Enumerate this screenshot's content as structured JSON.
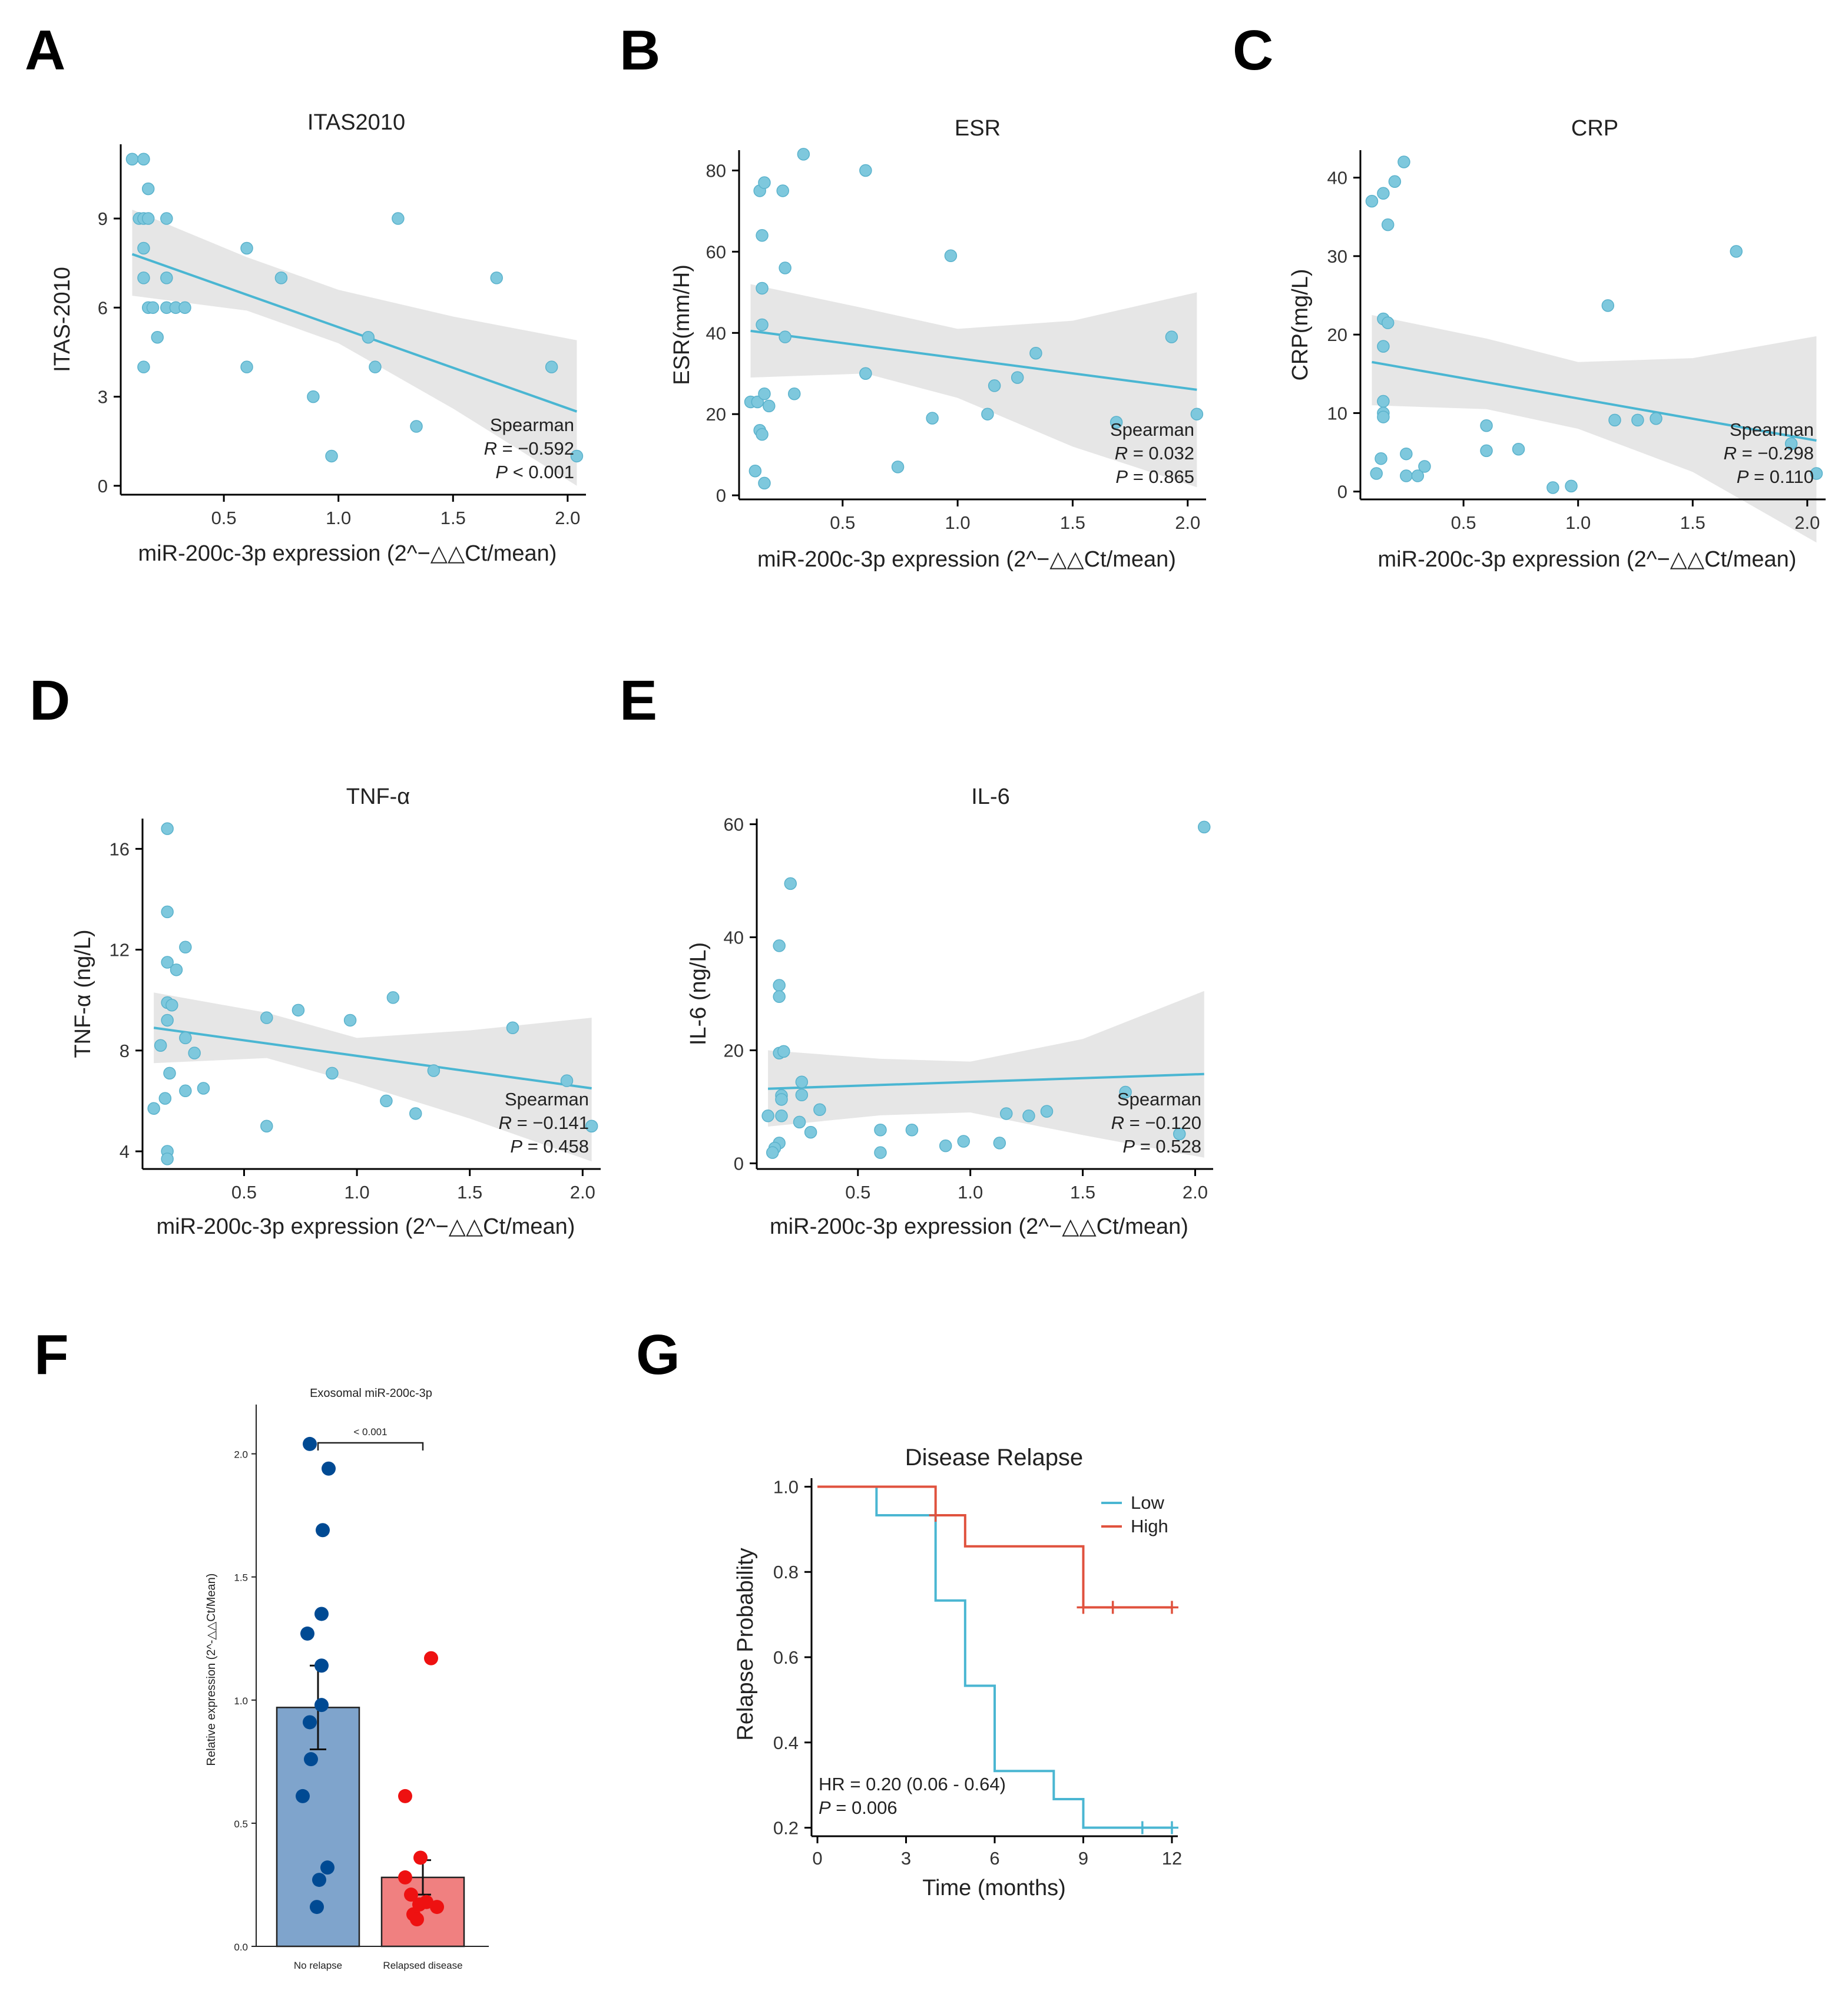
{
  "panels": {
    "A": "A",
    "B": "B",
    "C": "C",
    "D": "D",
    "E": "E",
    "F": "F",
    "G": "G"
  },
  "colors": {
    "point": "#7ec8dd",
    "point_stroke": "#5ab2cc",
    "line": "#4ab6d2",
    "band": "#e2e2e2",
    "bar_no_relapse": "#7fa4cc",
    "bar_relapsed": "#f08080",
    "dot_no_relapse": "#004a93",
    "dot_relapsed": "#ee1111",
    "km_low": "#4ab6d2",
    "km_high": "#e0523e"
  },
  "chart_data": [
    {
      "id": "A",
      "type": "scatter",
      "title": "ITAS2010",
      "xlabel": "miR-200c-3p expression (2^−△△Ct/mean)",
      "ylabel": "ITAS-2010",
      "xlim": [
        0.05,
        2.08
      ],
      "ylim": [
        -0.3,
        11.5
      ],
      "xticks": [
        0.5,
        1.0,
        1.5,
        2.0
      ],
      "xtick_labels": [
        "0.5",
        "1.0",
        "1.5",
        "2.0"
      ],
      "yticks": [
        0,
        3,
        6,
        9
      ],
      "ytick_labels": [
        "0",
        "3",
        "6",
        "9"
      ],
      "points": [
        [
          0.1,
          11
        ],
        [
          0.15,
          11
        ],
        [
          0.17,
          10
        ],
        [
          0.13,
          9
        ],
        [
          0.15,
          9
        ],
        [
          0.17,
          9
        ],
        [
          0.25,
          9
        ],
        [
          0.15,
          8
        ],
        [
          0.15,
          7
        ],
        [
          0.25,
          7
        ],
        [
          0.17,
          6
        ],
        [
          0.19,
          6
        ],
        [
          0.25,
          6
        ],
        [
          0.29,
          6
        ],
        [
          0.33,
          6
        ],
        [
          0.21,
          5
        ],
        [
          0.15,
          4
        ],
        [
          0.6,
          8
        ],
        [
          0.75,
          7
        ],
        [
          0.6,
          4
        ],
        [
          0.89,
          3
        ],
        [
          0.97,
          1
        ],
        [
          1.13,
          5
        ],
        [
          1.16,
          4
        ],
        [
          1.26,
          9
        ],
        [
          1.34,
          2
        ],
        [
          1.69,
          7
        ],
        [
          1.93,
          4
        ],
        [
          2.04,
          1
        ]
      ],
      "fit": {
        "x0": 0.1,
        "y0": 7.8,
        "x1": 2.04,
        "y1": 2.5
      },
      "band_upper": [
        [
          0.1,
          9.3
        ],
        [
          0.6,
          7.7
        ],
        [
          1.0,
          6.6
        ],
        [
          1.5,
          5.7
        ],
        [
          2.04,
          4.9
        ]
      ],
      "band_lower": [
        [
          0.1,
          6.4
        ],
        [
          0.6,
          5.9
        ],
        [
          1.0,
          4.8
        ],
        [
          1.5,
          2.6
        ],
        [
          2.04,
          0.0
        ]
      ],
      "stat": {
        "method": "Spearman",
        "r_label": "R",
        "r_value": " = −0.592",
        "p_label": "P",
        "p_value": " < 0.001"
      }
    },
    {
      "id": "B",
      "type": "scatter",
      "title": "ESR",
      "xlabel": "miR-200c-3p expression (2^−△△Ct/mean)",
      "ylabel": "ESR(mm/H)",
      "xlim": [
        0.05,
        2.08
      ],
      "ylim": [
        -1,
        85
      ],
      "xticks": [
        0.5,
        1.0,
        1.5,
        2.0
      ],
      "xtick_labels": [
        "0.5",
        "1.0",
        "1.5",
        "2.0"
      ],
      "yticks": [
        0,
        20,
        40,
        60,
        80
      ],
      "ytick_labels": [
        "0",
        "20",
        "40",
        "60",
        "80"
      ],
      "points": [
        [
          0.1,
          23
        ],
        [
          0.12,
          6
        ],
        [
          0.14,
          16
        ],
        [
          0.15,
          15
        ],
        [
          0.16,
          3
        ],
        [
          0.13,
          23
        ],
        [
          0.16,
          25
        ],
        [
          0.18,
          22
        ],
        [
          0.15,
          42
        ],
        [
          0.15,
          51
        ],
        [
          0.15,
          64
        ],
        [
          0.14,
          75
        ],
        [
          0.16,
          77
        ],
        [
          0.24,
          75
        ],
        [
          0.25,
          56
        ],
        [
          0.25,
          39
        ],
        [
          0.29,
          25
        ],
        [
          0.33,
          84
        ],
        [
          0.6,
          80
        ],
        [
          0.6,
          30
        ],
        [
          0.74,
          7
        ],
        [
          0.89,
          19
        ],
        [
          0.97,
          59
        ],
        [
          1.13,
          20
        ],
        [
          1.16,
          27
        ],
        [
          1.26,
          29
        ],
        [
          1.34,
          35
        ],
        [
          1.69,
          18
        ],
        [
          1.93,
          39
        ],
        [
          2.04,
          20
        ]
      ],
      "fit": {
        "x0": 0.1,
        "y0": 40.5,
        "x1": 2.04,
        "y1": 26
      },
      "band_upper": [
        [
          0.1,
          52
        ],
        [
          0.6,
          46
        ],
        [
          1.0,
          41
        ],
        [
          1.5,
          43
        ],
        [
          2.04,
          50
        ]
      ],
      "band_lower": [
        [
          0.1,
          29
        ],
        [
          0.6,
          30
        ],
        [
          1.0,
          24
        ],
        [
          1.5,
          12
        ],
        [
          2.04,
          2
        ]
      ],
      "stat": {
        "method": "Spearman",
        "r_label": "R",
        "r_value": " = 0.032",
        "p_label": "P",
        "p_value": " = 0.865"
      }
    },
    {
      "id": "C",
      "type": "scatter",
      "title": "CRP",
      "xlabel": "miR-200c-3p expression (2^−△△Ct/mean)",
      "ylabel": "CRP(mg/L)",
      "xlim": [
        0.05,
        2.08
      ],
      "ylim": [
        -1,
        43.5
      ],
      "xticks": [
        0.5,
        1.0,
        1.5,
        2.0
      ],
      "xtick_labels": [
        "0.5",
        "1.0",
        "1.5",
        "2.0"
      ],
      "yticks": [
        0,
        10,
        20,
        30,
        40
      ],
      "ytick_labels": [
        "0",
        "10",
        "20",
        "30",
        "40"
      ],
      "points": [
        [
          0.1,
          37
        ],
        [
          0.15,
          38
        ],
        [
          0.17,
          34
        ],
        [
          0.2,
          39.5
        ],
        [
          0.24,
          42
        ],
        [
          0.15,
          22
        ],
        [
          0.17,
          21.5
        ],
        [
          0.15,
          18.5
        ],
        [
          0.15,
          11.5
        ],
        [
          0.15,
          10
        ],
        [
          0.15,
          9.5
        ],
        [
          0.14,
          4.2
        ],
        [
          0.12,
          2.3
        ],
        [
          0.25,
          4.8
        ],
        [
          0.25,
          2
        ],
        [
          0.3,
          2
        ],
        [
          0.33,
          3.2
        ],
        [
          0.6,
          8.4
        ],
        [
          0.6,
          5.2
        ],
        [
          0.74,
          5.4
        ],
        [
          0.89,
          0.5
        ],
        [
          0.97,
          0.7
        ],
        [
          1.13,
          23.7
        ],
        [
          1.16,
          9.1
        ],
        [
          1.26,
          9.1
        ],
        [
          1.34,
          9.3
        ],
        [
          1.69,
          30.6
        ],
        [
          1.93,
          6.1
        ],
        [
          2.04,
          2.3
        ]
      ],
      "fit": {
        "x0": 0.1,
        "y0": 16.5,
        "x1": 2.04,
        "y1": 6.5
      },
      "band_upper": [
        [
          0.1,
          22.5
        ],
        [
          0.6,
          19.5
        ],
        [
          1.0,
          16.5
        ],
        [
          1.5,
          17
        ],
        [
          2.04,
          19.8
        ]
      ],
      "band_lower": [
        [
          0.1,
          11
        ],
        [
          0.6,
          10.5
        ],
        [
          1.0,
          8
        ],
        [
          1.5,
          2.5
        ],
        [
          2.04,
          -6.5
        ]
      ],
      "stat": {
        "method": "Spearman",
        "r_label": "R",
        "r_value": " = −0.298",
        "p_label": "P",
        "p_value": " = 0.110"
      }
    },
    {
      "id": "D",
      "type": "scatter",
      "title": "TNF-α",
      "xlabel": "miR-200c-3p expression (2^−△△Ct/mean)",
      "ylabel": "TNF-α (ng/L)",
      "xlim": [
        0.05,
        2.08
      ],
      "ylim": [
        3.3,
        17.2
      ],
      "xticks": [
        0.5,
        1.0,
        1.5,
        2.0
      ],
      "xtick_labels": [
        "0.5",
        "1.0",
        "1.5",
        "2.0"
      ],
      "yticks": [
        4,
        8,
        12,
        16
      ],
      "ytick_labels": [
        "4",
        "8",
        "12",
        "16"
      ],
      "points": [
        [
          0.16,
          16.8
        ],
        [
          0.16,
          13.5
        ],
        [
          0.16,
          11.5
        ],
        [
          0.2,
          11.2
        ],
        [
          0.24,
          12.1
        ],
        [
          0.16,
          9.9
        ],
        [
          0.18,
          9.8
        ],
        [
          0.16,
          9.2
        ],
        [
          0.24,
          8.5
        ],
        [
          0.13,
          8.2
        ],
        [
          0.28,
          7.9
        ],
        [
          0.17,
          7.1
        ],
        [
          0.15,
          6.1
        ],
        [
          0.1,
          5.7
        ],
        [
          0.24,
          6.4
        ],
        [
          0.32,
          6.5
        ],
        [
          0.16,
          4
        ],
        [
          0.16,
          3.7
        ],
        [
          0.6,
          9.3
        ],
        [
          0.6,
          5
        ],
        [
          0.74,
          9.6
        ],
        [
          0.89,
          7.1
        ],
        [
          0.97,
          9.2
        ],
        [
          1.13,
          6
        ],
        [
          1.16,
          10.1
        ],
        [
          1.26,
          5.5
        ],
        [
          1.34,
          7.2
        ],
        [
          1.69,
          8.9
        ],
        [
          1.93,
          6.8
        ],
        [
          2.04,
          5
        ]
      ],
      "fit": {
        "x0": 0.1,
        "y0": 8.9,
        "x1": 2.04,
        "y1": 6.5
      },
      "band_upper": [
        [
          0.1,
          10.3
        ],
        [
          0.6,
          9.5
        ],
        [
          1.0,
          8.5
        ],
        [
          1.5,
          8.8
        ],
        [
          2.04,
          9.3
        ]
      ],
      "band_lower": [
        [
          0.1,
          7.5
        ],
        [
          0.6,
          7.7
        ],
        [
          1.0,
          6.7
        ],
        [
          1.5,
          5.3
        ],
        [
          2.04,
          3.6
        ]
      ],
      "stat": {
        "method": "Spearman",
        "r_label": "R",
        "r_value": " = −0.141",
        "p_label": "P",
        "p_value": " = 0.458"
      }
    },
    {
      "id": "E",
      "type": "scatter",
      "title": "IL-6",
      "xlabel": "miR-200c-3p expression (2^−△△Ct/mean)",
      "ylabel": "IL-6 (ng/L)",
      "xlim": [
        0.05,
        2.08
      ],
      "ylim": [
        -1,
        61
      ],
      "xticks": [
        0.5,
        1.0,
        1.5,
        2.0
      ],
      "xtick_labels": [
        "0.5",
        "1.0",
        "1.5",
        "2.0"
      ],
      "yticks": [
        0,
        20,
        40,
        60
      ],
      "ytick_labels": [
        "0",
        "20",
        "40",
        "60"
      ],
      "points": [
        [
          0.2,
          49.5
        ],
        [
          0.15,
          38.5
        ],
        [
          0.15,
          31.5
        ],
        [
          0.15,
          29.5
        ],
        [
          0.15,
          19.5
        ],
        [
          0.17,
          19.8
        ],
        [
          0.16,
          12
        ],
        [
          0.16,
          11.3
        ],
        [
          0.1,
          8.4
        ],
        [
          0.16,
          8.4
        ],
        [
          0.25,
          14.4
        ],
        [
          0.25,
          12.1
        ],
        [
          0.24,
          7.3
        ],
        [
          0.29,
          5.5
        ],
        [
          0.33,
          9.5
        ],
        [
          0.15,
          3.6
        ],
        [
          0.13,
          2.7
        ],
        [
          0.12,
          1.9
        ],
        [
          0.6,
          5.9
        ],
        [
          0.6,
          1.9
        ],
        [
          0.74,
          5.9
        ],
        [
          0.89,
          3.1
        ],
        [
          0.97,
          3.9
        ],
        [
          1.13,
          3.6
        ],
        [
          1.16,
          8.8
        ],
        [
          1.26,
          8.4
        ],
        [
          1.34,
          9.2
        ],
        [
          1.69,
          12.6
        ],
        [
          1.93,
          5.2
        ],
        [
          2.04,
          59.5
        ]
      ],
      "fit": {
        "x0": 0.1,
        "y0": 13.2,
        "x1": 2.04,
        "y1": 15.8
      },
      "band_upper": [
        [
          0.1,
          20
        ],
        [
          0.6,
          18.5
        ],
        [
          1.0,
          18
        ],
        [
          1.5,
          22
        ],
        [
          2.04,
          30.5
        ]
      ],
      "band_lower": [
        [
          0.1,
          6.5
        ],
        [
          0.6,
          8.5
        ],
        [
          1.0,
          9
        ],
        [
          1.5,
          5
        ],
        [
          2.04,
          1
        ]
      ],
      "stat": {
        "method": "Spearman",
        "r_label": "R",
        "r_value": " = −0.120",
        "p_label": "P",
        "p_value": " = 0.528"
      }
    },
    {
      "id": "F",
      "type": "bar",
      "title": "Exosomal miR-200c-3p",
      "ylabel": "Relative expression (2^-△△Ct/Mean)",
      "categories": [
        "No relapse",
        "Relapsed disease"
      ],
      "values": [
        0.97,
        0.28
      ],
      "errors": [
        0.17,
        0.07
      ],
      "ylim": [
        0,
        2.2
      ],
      "yticks": [
        0.0,
        0.5,
        1.0,
        1.5,
        2.0
      ],
      "ytick_labels": [
        "0.0",
        "0.5",
        "1.0",
        "1.5",
        "2.0"
      ],
      "points_no_relapse": [
        2.04,
        1.94,
        1.69,
        1.35,
        1.27,
        1.14,
        0.98,
        0.91,
        0.76,
        0.61,
        0.32,
        0.27,
        0.16
      ],
      "points_relapsed": [
        1.17,
        0.61,
        0.36,
        0.28,
        0.21,
        0.18,
        0.17,
        0.16,
        0.13,
        0.11
      ],
      "significance": "< 0.001"
    },
    {
      "id": "G",
      "type": "line",
      "title": "Disease Relapse",
      "xlabel": "Time (months)",
      "ylabel": "Relapse Probability",
      "xlim": [
        -0.2,
        12.2
      ],
      "ylim": [
        0.18,
        1.02
      ],
      "xticks": [
        0,
        3,
        6,
        9,
        12
      ],
      "xtick_labels": [
        "0",
        "3",
        "6",
        "9",
        "12"
      ],
      "yticks": [
        0.2,
        0.4,
        0.6,
        0.8,
        1.0
      ],
      "ytick_labels": [
        "0.2",
        "0.4",
        "0.6",
        "0.8",
        "1.0"
      ],
      "series": [
        {
          "name": "Low",
          "steps": [
            [
              0,
              1.0
            ],
            [
              2,
              0.933
            ],
            [
              4,
              0.733
            ],
            [
              5,
              0.533
            ],
            [
              6,
              0.333
            ],
            [
              8,
              0.267
            ],
            [
              9,
              0.2
            ],
            [
              12,
              0.2
            ]
          ],
          "censored": [
            [
              11,
              0.2
            ],
            [
              12,
              0.2
            ]
          ]
        },
        {
          "name": "High",
          "steps": [
            [
              0,
              1.0
            ],
            [
              4,
              0.933
            ],
            [
              5,
              0.86
            ],
            [
              9,
              0.717
            ],
            [
              12,
              0.717
            ]
          ],
          "censored": [
            [
              4,
              0.933
            ],
            [
              9,
              0.717
            ],
            [
              10,
              0.717
            ],
            [
              12,
              0.717
            ]
          ]
        }
      ],
      "hr_text": "HR = 0.20 (0.06 -  0.64)",
      "p_label": "P",
      "p_value": " = 0.006"
    }
  ]
}
